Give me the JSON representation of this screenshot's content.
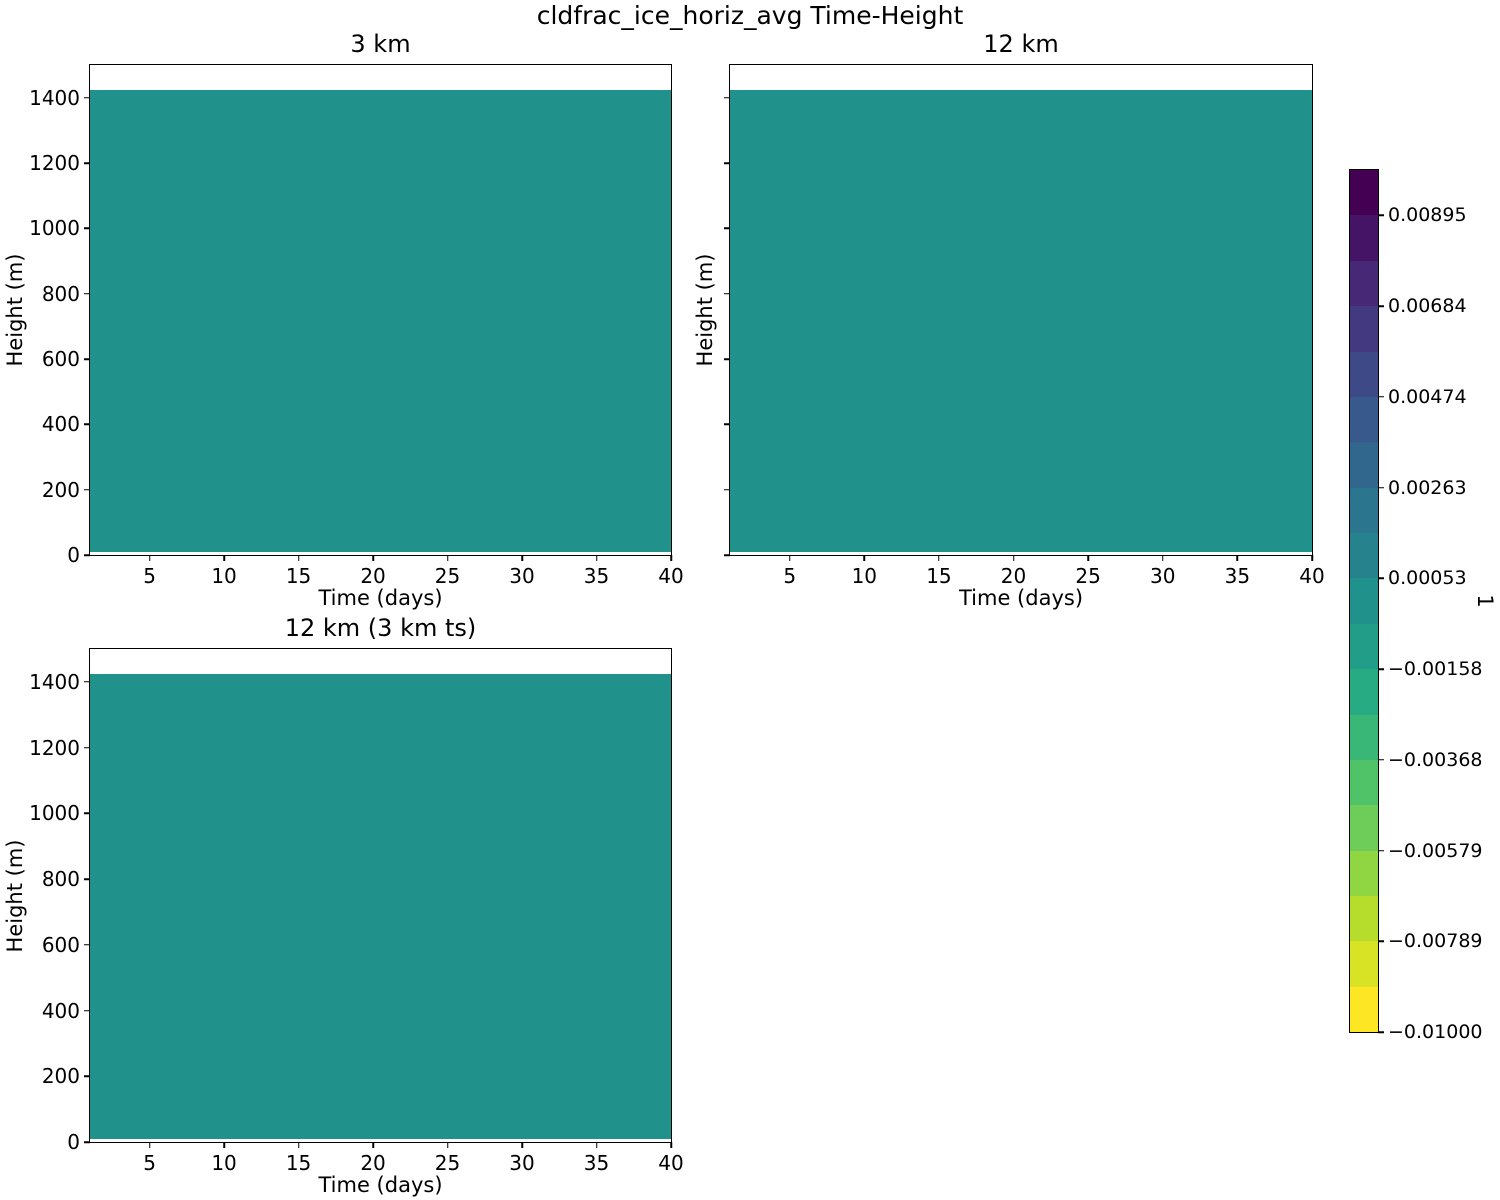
{
  "figure": {
    "title": "cldfrac_ice_horiz_avg Time-Height",
    "background_color": "#ffffff",
    "text_color": "#000000"
  },
  "subplots": [
    {
      "title": "3 km",
      "xlabel": "Time (days)",
      "ylabel": "Height (m)",
      "xlim": [
        1,
        40
      ],
      "ylim": [
        0,
        1500
      ],
      "xticks": [
        5,
        10,
        15,
        20,
        25,
        30,
        35,
        40
      ],
      "yticks": [
        0,
        200,
        400,
        600,
        800,
        1000,
        1200,
        1400
      ],
      "show_ytick_labels": true,
      "fill": {
        "color": "#21918c",
        "top_m": 1425,
        "bottom_m": 10
      }
    },
    {
      "title": "12 km",
      "xlabel": "Time (days)",
      "ylabel": "Height (m)",
      "xlim": [
        1,
        40
      ],
      "ylim": [
        0,
        1500
      ],
      "xticks": [
        5,
        10,
        15,
        20,
        25,
        30,
        35,
        40
      ],
      "yticks": [
        0,
        200,
        400,
        600,
        800,
        1000,
        1200,
        1400
      ],
      "show_ytick_labels": false,
      "fill": {
        "color": "#21918c",
        "top_m": 1425,
        "bottom_m": 10
      }
    },
    {
      "title": "12 km (3 km ts)",
      "xlabel": "Time (days)",
      "ylabel": "Height (m)",
      "xlim": [
        1,
        40
      ],
      "ylim": [
        0,
        1500
      ],
      "xticks": [
        5,
        10,
        15,
        20,
        25,
        30,
        35,
        40
      ],
      "yticks": [
        0,
        200,
        400,
        600,
        800,
        1000,
        1200,
        1400
      ],
      "show_ytick_labels": true,
      "fill": {
        "color": "#21918c",
        "top_m": 1425,
        "bottom_m": 10
      }
    }
  ],
  "colorbar": {
    "label": "1",
    "tick_labels": [
      "0.00895",
      "0.00684",
      "0.00474",
      "0.00263",
      "0.00053",
      "−0.00158",
      "−0.00368",
      "−0.00579",
      "−0.00789",
      "−0.01000"
    ],
    "band_colors": [
      "#440154",
      "#461466",
      "#472877",
      "#433981",
      "#3e4a88",
      "#38598c",
      "#31678d",
      "#2b758e",
      "#26838d",
      "#21918c",
      "#229e88",
      "#26ab82",
      "#39b777",
      "#50c369",
      "#6ecd58",
      "#90d643",
      "#b6dd2b",
      "#d9e326",
      "#fde725"
    ],
    "vmin": -0.01,
    "vmax": 0.01,
    "n_bands": 19
  },
  "chart_data": {
    "type": "heatmap",
    "title": "cldfrac_ice_horiz_avg Time-Height",
    "xlabel": "Time (days)",
    "ylabel": "Height (m)",
    "grid": false,
    "legend_position": "right-colorbar",
    "panels": [
      {
        "title": "3 km",
        "xlim": [
          1,
          40
        ],
        "ylim": [
          0,
          1500
        ],
        "xticks": [
          5,
          10,
          15,
          20,
          25,
          30,
          35,
          40
        ],
        "yticks": [
          0,
          200,
          400,
          600,
          800,
          1000,
          1200,
          1400
        ],
        "data_extent": {
          "time_days": [
            1,
            40
          ],
          "height_m": [
            10,
            1425
          ]
        },
        "field": "uniform single filled-contour band",
        "value": 0.0,
        "value_band": [
          -0.00053,
          0.00053
        ],
        "fill_color": "#21918c"
      },
      {
        "title": "12 km",
        "xlim": [
          1,
          40
        ],
        "ylim": [
          0,
          1500
        ],
        "xticks": [
          5,
          10,
          15,
          20,
          25,
          30,
          35,
          40
        ],
        "yticks": [
          0,
          200,
          400,
          600,
          800,
          1000,
          1200,
          1400
        ],
        "data_extent": {
          "time_days": [
            1,
            40
          ],
          "height_m": [
            10,
            1425
          ]
        },
        "field": "uniform single filled-contour band",
        "value": 0.0,
        "value_band": [
          -0.00053,
          0.00053
        ],
        "fill_color": "#21918c"
      },
      {
        "title": "12 km (3 km ts)",
        "xlim": [
          1,
          40
        ],
        "ylim": [
          0,
          1500
        ],
        "xticks": [
          5,
          10,
          15,
          20,
          25,
          30,
          35,
          40
        ],
        "yticks": [
          0,
          200,
          400,
          600,
          800,
          1000,
          1200,
          1400
        ],
        "data_extent": {
          "time_days": [
            1,
            40
          ],
          "height_m": [
            10,
            1425
          ]
        },
        "field": "uniform single filled-contour band",
        "value": 0.0,
        "value_band": [
          -0.00053,
          0.00053
        ],
        "fill_color": "#21918c"
      }
    ],
    "colorbar": {
      "label": "1",
      "levels_min": -0.01,
      "levels_max": 0.01,
      "n_levels": 19,
      "level_step": 0.0010526,
      "ticks": [
        0.00895,
        0.00684,
        0.00474,
        0.00263,
        0.00053,
        -0.00158,
        -0.00368,
        -0.00579,
        -0.00789,
        -0.01
      ],
      "colormap": "viridis reversed (yellow = low, dark purple = high)"
    }
  }
}
